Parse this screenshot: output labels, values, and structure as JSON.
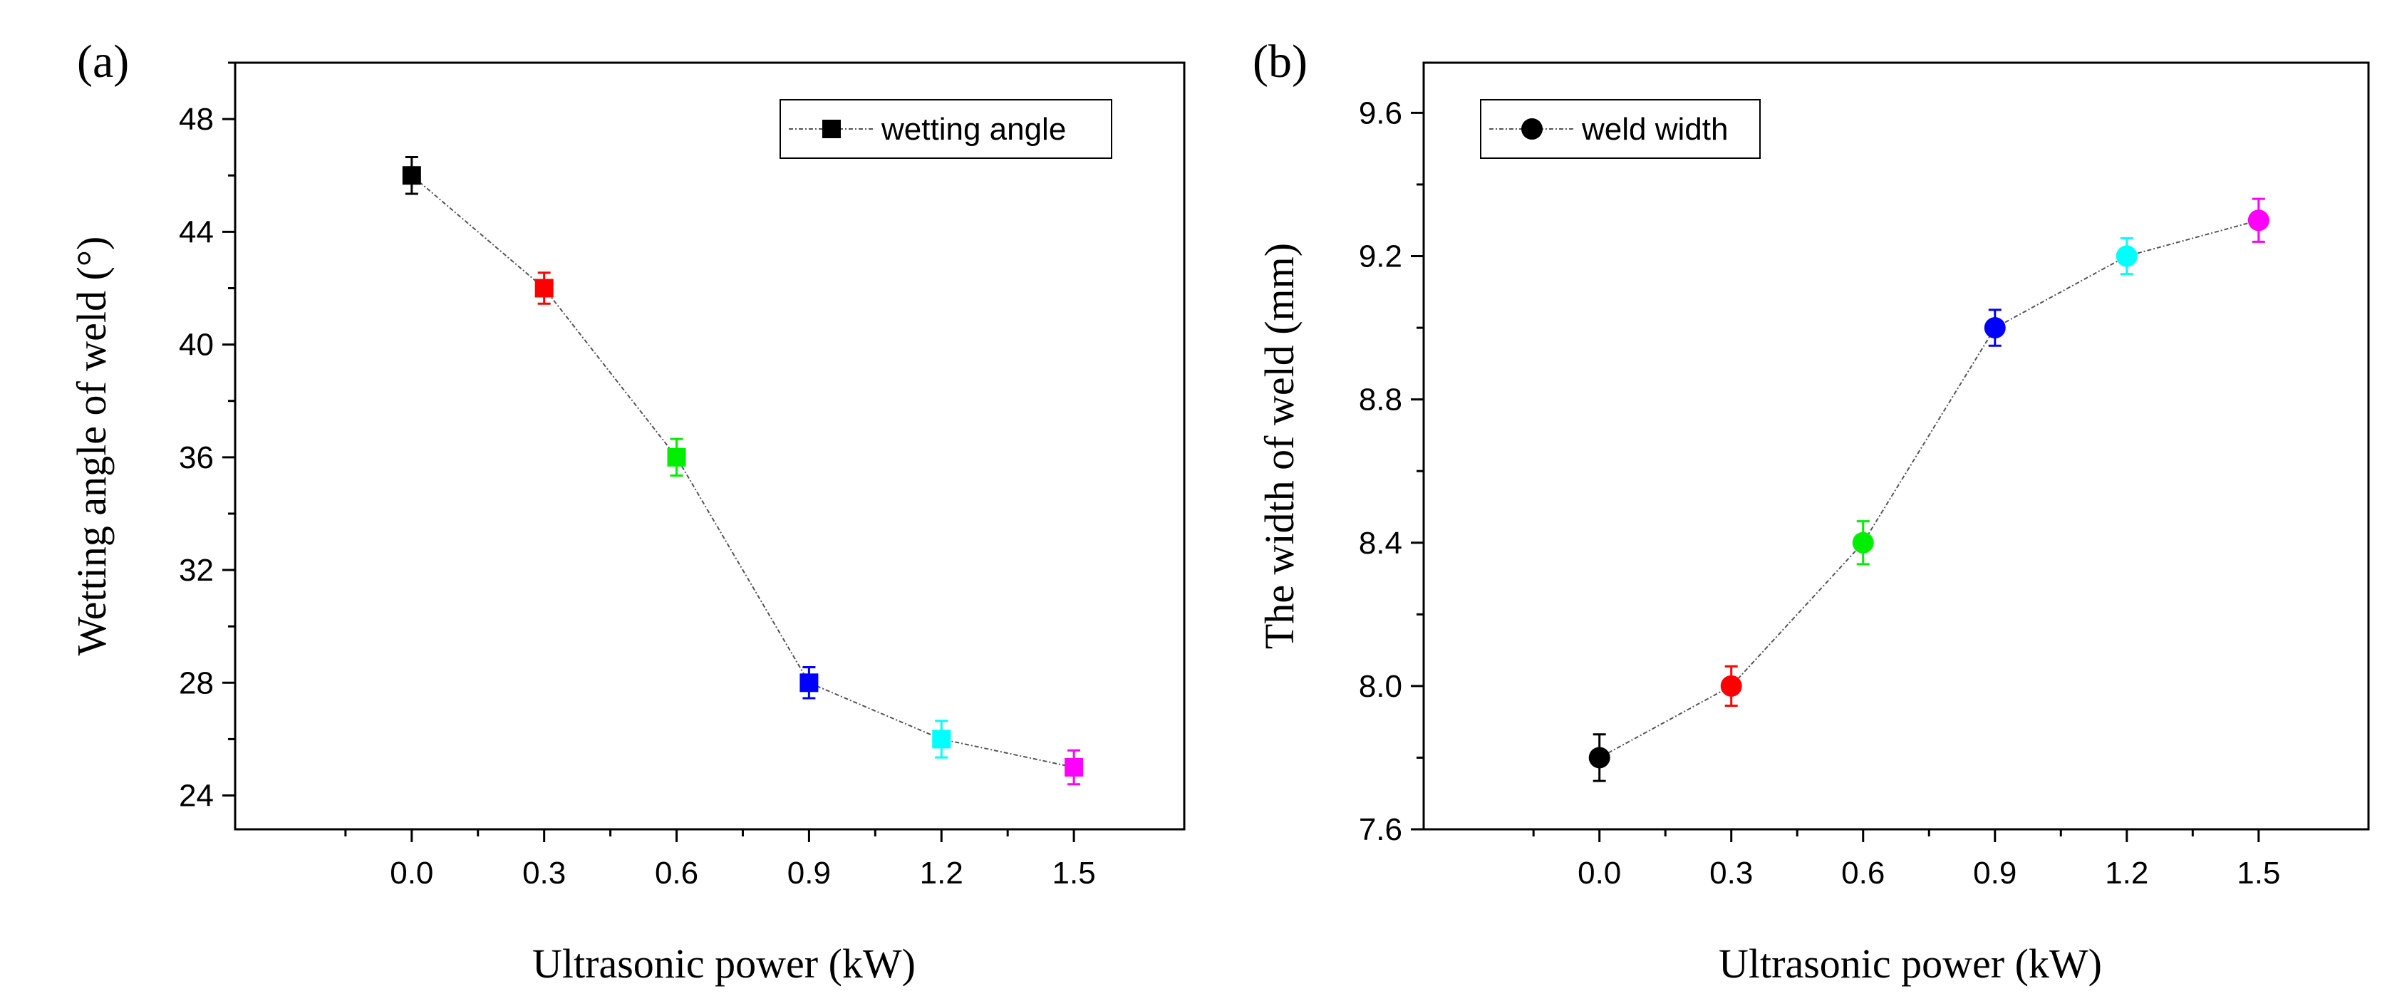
{
  "chart_data": [
    {
      "type": "line",
      "panel_label": "(a)",
      "xlabel": "Ultrasonic power  (kW)",
      "ylabel": "Wetting angle of weld (°)",
      "x": [
        0.0,
        0.3,
        0.6,
        0.9,
        1.2,
        1.5
      ],
      "x_tick_labels": [
        "0.0",
        "0.3",
        "0.6",
        "0.9",
        "1.2",
        "1.5"
      ],
      "xlim": [
        -0.4,
        1.75
      ],
      "y_ticks": [
        24,
        28,
        32,
        36,
        40,
        44,
        48
      ],
      "y_tick_labels": [
        "24",
        "28",
        "32",
        "36",
        "40",
        "44",
        "48"
      ],
      "ylim": [
        22.8,
        50
      ],
      "marker": "square",
      "series": [
        {
          "name": "wetting angle",
          "values": [
            46,
            42,
            36,
            28,
            26,
            25
          ],
          "errors": [
            0.65,
            0.55,
            0.65,
            0.55,
            0.65,
            0.6
          ],
          "point_colors": [
            "#000000",
            "#ff0000",
            "#00ee00",
            "#0000ff",
            "#00ffff",
            "#ff00ff"
          ]
        }
      ],
      "legend_position": "top-right",
      "grid": false
    },
    {
      "type": "line",
      "panel_label": "(b)",
      "xlabel": "Ultrasonic power  (kW)",
      "ylabel": "The width of weld (mm)",
      "x": [
        0.0,
        0.3,
        0.6,
        0.9,
        1.2,
        1.5
      ],
      "x_tick_labels": [
        "0.0",
        "0.3",
        "0.6",
        "0.9",
        "1.2",
        "1.5"
      ],
      "xlim": [
        -0.4,
        1.75
      ],
      "y_ticks": [
        7.6,
        8.0,
        8.4,
        8.8,
        9.2,
        9.6
      ],
      "y_tick_labels": [
        "7.6",
        "8.0",
        "8.4",
        "8.8",
        "9.2",
        "9.6"
      ],
      "ylim": [
        7.6,
        9.74
      ],
      "marker": "circle",
      "series": [
        {
          "name": "weld width",
          "values": [
            7.8,
            8.0,
            8.4,
            9.0,
            9.2,
            9.3
          ],
          "errors": [
            0.065,
            0.055,
            0.06,
            0.05,
            0.05,
            0.06
          ],
          "point_colors": [
            "#000000",
            "#ff0000",
            "#00ee00",
            "#0000ff",
            "#00ffff",
            "#ff00ff"
          ]
        }
      ],
      "legend_position": "top-left",
      "grid": false
    }
  ]
}
